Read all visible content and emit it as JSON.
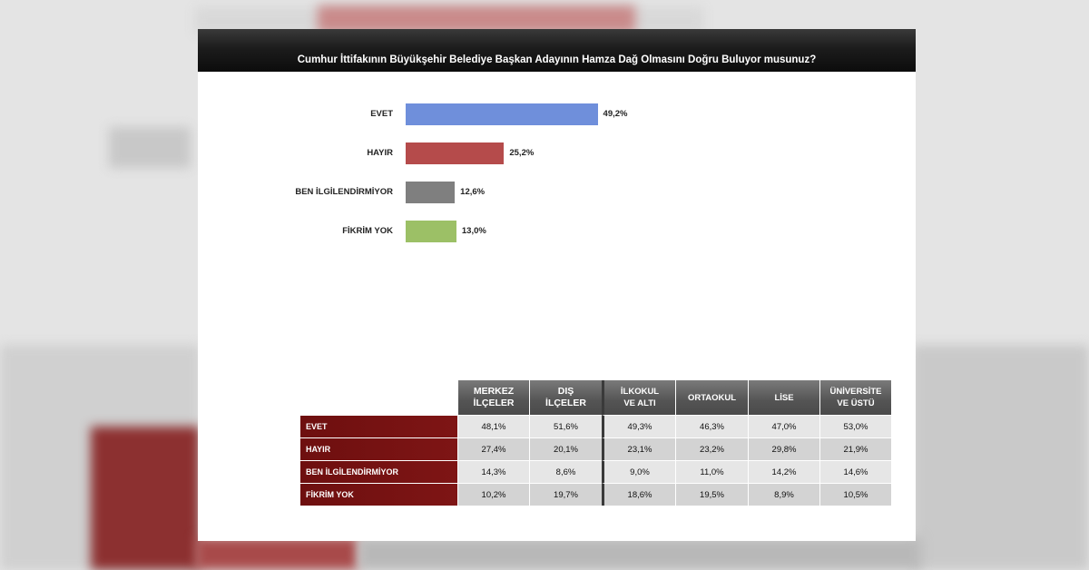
{
  "title": "Cumhur İttifakının Büyükşehir Belediye Başkan Adayının Hamza Dağ Olmasını Doğru Buluyor musunuz?",
  "chart_data": [
    {
      "type": "bar",
      "orientation": "horizontal",
      "title": "Cumhur İttifakının Büyükşehir Belediye Başkan Adayının Hamza Dağ Olmasını Doğru Buluyor musunuz?",
      "categories": [
        "EVET",
        "HAYIR",
        "BEN İLGİLENDİRMİYOR",
        "FİKRİM YOK"
      ],
      "values": [
        49.2,
        25.2,
        12.6,
        13.0
      ],
      "value_labels": [
        "49,2%",
        "25,2%",
        "12,6%",
        "13,0%"
      ],
      "colors": [
        "#6f8fdb",
        "#b54b4b",
        "#7f7f7f",
        "#9cc066"
      ],
      "xlim": [
        0,
        100
      ],
      "grid": false,
      "legend": "none"
    },
    {
      "type": "table",
      "columns": [
        "MERKEZ İLÇELER",
        "DIŞ İLÇELER",
        "İLKOKUL VE ALTI",
        "ORTAOKUL",
        "LİSE",
        "ÜNİVERSİTE VE ÜSTÜ"
      ],
      "column_lines": [
        [
          "MERKEZ",
          "İLÇELER"
        ],
        [
          "DIŞ",
          "İLÇELER"
        ],
        [
          "İLKOKUL",
          "VE ALTI"
        ],
        [
          "ORTAOKUL"
        ],
        [
          "LİSE"
        ],
        [
          "ÜNİVERSİTE",
          "VE ÜSTÜ"
        ]
      ],
      "rows": [
        {
          "label": "EVET",
          "values": [
            "48,1%",
            "51,6%",
            "49,3%",
            "46,3%",
            "47,0%",
            "53,0%"
          ]
        },
        {
          "label": "HAYIR",
          "values": [
            "27,4%",
            "20,1%",
            "23,1%",
            "23,2%",
            "29,8%",
            "21,9%"
          ]
        },
        {
          "label": "BEN İLGİLENDİRMİYOR",
          "values": [
            "14,3%",
            "8,6%",
            "9,0%",
            "11,0%",
            "14,2%",
            "14,6%"
          ]
        },
        {
          "label": "FİKRİM YOK",
          "values": [
            "10,2%",
            "19,7%",
            "18,6%",
            "19,5%",
            "8,9%",
            "10,5%"
          ]
        }
      ]
    }
  ]
}
